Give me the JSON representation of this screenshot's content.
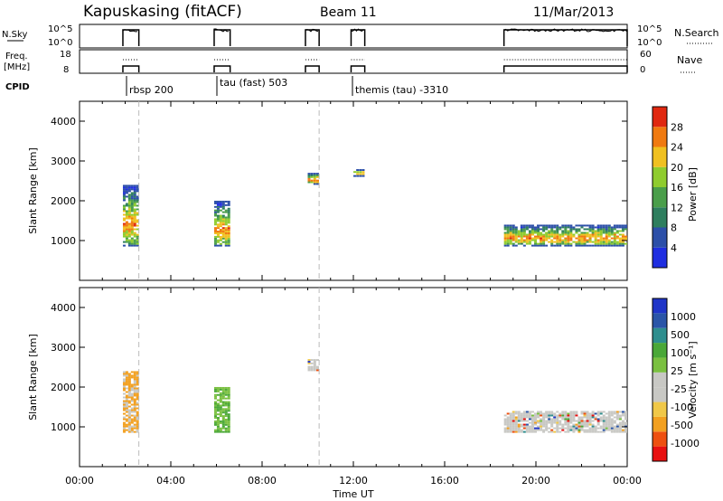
{
  "header": {
    "station": "Kapuskasing (fitACF)",
    "beam": "Beam 11",
    "date": "11/Mar/2013"
  },
  "panels": {
    "nsky_label": "N.Sky",
    "nsky_ticks": [
      "10^5",
      "10^0"
    ],
    "nsearch_label": "N.Search",
    "nsearch_ticks": [
      "10^5",
      "10^0"
    ],
    "freq_label_1": "Freq.",
    "freq_label_2": "[MHz]",
    "freq_ticks": [
      "18",
      "8"
    ],
    "nave_label": "Nave",
    "nave_ticks": [
      "60",
      "0"
    ],
    "cpid_label": "CPID",
    "cpid_entries": [
      {
        "text": "rbsp 200",
        "hour": 2.6
      },
      {
        "text": "tau (fast) 503",
        "hour": 6.0
      },
      {
        "text": "themis (tau) -3310",
        "hour": 12.0
      }
    ]
  },
  "colors": {
    "power_scale": [
      "#1f2ee0",
      "#2c4fa8",
      "#2e7e5e",
      "#4a9e4a",
      "#8fcc2e",
      "#f0c020",
      "#f07a10",
      "#e02810"
    ],
    "velocity_scale": [
      "#e81010",
      "#ee5010",
      "#f2a020",
      "#f0c848",
      "#c8c8c4",
      "#c8c8c4",
      "#7ac040",
      "#4aa838",
      "#2e8e8e",
      "#2a55a8",
      "#1f35c8"
    ]
  },
  "chart_data": [
    {
      "type": "heatmap",
      "quantity": "power",
      "ylabel": "Slant Range [km]",
      "yticks": [
        "1000",
        "2000",
        "3000",
        "4000"
      ],
      "ylim": [
        0,
        4500
      ],
      "xlim": [
        0,
        24
      ],
      "colorbar_label": "Power [dB]",
      "colorbar_ticks": [
        "4",
        "8",
        "12",
        "16",
        "20",
        "24",
        "28"
      ],
      "colorbar_range": [
        0,
        32
      ],
      "regions": [
        {
          "x": [
            1.9,
            2.6
          ],
          "y": [
            850,
            2400
          ]
        },
        {
          "x": [
            5.9,
            6.6
          ],
          "y": [
            850,
            2000
          ]
        },
        {
          "x": [
            10.0,
            10.5
          ],
          "y": [
            2400,
            2700
          ]
        },
        {
          "x": [
            12.0,
            12.5
          ],
          "y": [
            2600,
            2800
          ]
        },
        {
          "x": [
            18.6,
            24.0
          ],
          "y": [
            850,
            1400
          ]
        }
      ]
    },
    {
      "type": "heatmap",
      "quantity": "velocity",
      "ylabel": "Slant Range [km]",
      "yticks": [
        "1000",
        "2000",
        "3000",
        "4000"
      ],
      "ylim": [
        0,
        4500
      ],
      "xlim": [
        0,
        24
      ],
      "colorbar_label": "Velocity [m s⁻¹]",
      "colorbar_ticks": [
        "-1000",
        "-500",
        "-100",
        "-25",
        "25",
        "100",
        "500",
        "1000"
      ],
      "regions": [
        {
          "x": [
            1.9,
            2.6
          ],
          "y": [
            850,
            2400
          ]
        },
        {
          "x": [
            5.9,
            6.6
          ],
          "y": [
            850,
            2000
          ]
        },
        {
          "x": [
            10.0,
            10.5
          ],
          "y": [
            2400,
            2700
          ]
        },
        {
          "x": [
            18.6,
            24.0
          ],
          "y": [
            850,
            1400
          ]
        }
      ]
    }
  ],
  "xaxis": {
    "ticks": [
      "00:00",
      "04:00",
      "08:00",
      "12:00",
      "16:00",
      "20:00",
      "00:00"
    ],
    "label": "Time UT"
  }
}
